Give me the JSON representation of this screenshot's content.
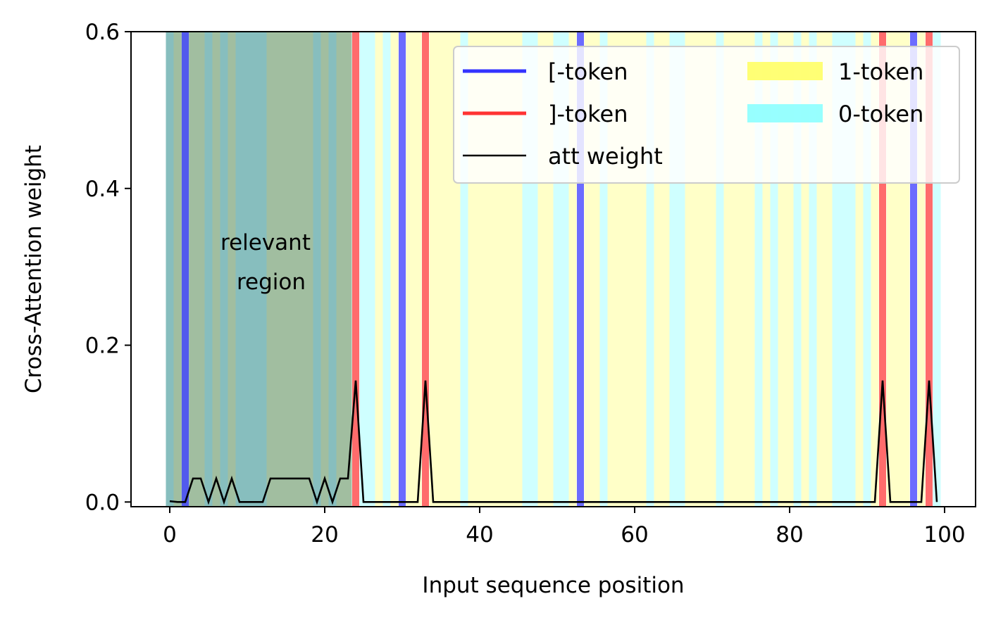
{
  "chart_data": {
    "type": "line",
    "xlabel": "Input sequence position",
    "ylabel": "Cross-Attention weight",
    "xlim": [
      -5,
      104
    ],
    "ylim": [
      -0.006,
      0.6
    ],
    "xticks": [
      0,
      20,
      40,
      60,
      80,
      100
    ],
    "xtick_labels": [
      "0",
      "20",
      "40",
      "60",
      "80",
      "100"
    ],
    "yticks": [
      0.0,
      0.2,
      0.4,
      0.6
    ],
    "ytick_labels": [
      "0.0",
      "0.2",
      "0.4",
      "0.6"
    ],
    "grid": false,
    "legend_placement": "upper-right",
    "colors": {
      "open_bracket": "#3333ff",
      "close_bracket": "#ff3333",
      "token_1": "#ffff66",
      "token_0": "#8cffff",
      "relevant_region": "#2f6f6f",
      "att_line": "#000000"
    },
    "legend": [
      {
        "label": "[-token",
        "kind": "line",
        "color": "#3333ff"
      },
      {
        "label": "]-token",
        "kind": "line",
        "color": "#ff3333"
      },
      {
        "label": "att weight",
        "kind": "thin-line",
        "color": "#000000"
      },
      {
        "label": "1-token",
        "kind": "patch",
        "color": "#ffff66"
      },
      {
        "label": "0-token",
        "kind": "patch",
        "color": "#8cffff"
      }
    ],
    "annotation": {
      "lines": [
        "relevant",
        "region"
      ],
      "x": 13,
      "y": 0.3
    },
    "relevant_region": [
      -0.5,
      23.5
    ],
    "open_bracket_positions": [
      2,
      30,
      53,
      96
    ],
    "close_bracket_positions": [
      24,
      33,
      92,
      98
    ],
    "token_types": [
      0,
      1,
      "[",
      1,
      1,
      0,
      1,
      0,
      1,
      0,
      0,
      0,
      0,
      1,
      1,
      1,
      1,
      1,
      1,
      0,
      1,
      0,
      1,
      1,
      "]",
      0,
      0,
      1,
      0,
      1,
      "[",
      1,
      1,
      "]",
      1,
      1,
      1,
      1,
      0,
      1,
      1,
      1,
      1,
      1,
      1,
      1,
      0,
      0,
      1,
      1,
      0,
      0,
      1,
      "[",
      1,
      1,
      0,
      1,
      1,
      1,
      1,
      1,
      0,
      1,
      1,
      0,
      0,
      1,
      1,
      1,
      1,
      0,
      1,
      1,
      1,
      1,
      0,
      1,
      0,
      1,
      1,
      0,
      1,
      0,
      1,
      1,
      0,
      0,
      0,
      1,
      0,
      1,
      "]",
      1,
      1,
      1,
      "[",
      1,
      "]",
      0
    ],
    "series": [
      {
        "name": "att weight",
        "x": [
          0,
          1,
          2,
          3,
          4,
          5,
          6,
          7,
          8,
          9,
          10,
          11,
          12,
          13,
          14,
          15,
          16,
          17,
          18,
          19,
          20,
          21,
          22,
          23,
          24,
          25,
          26,
          27,
          28,
          29,
          30,
          31,
          32,
          33,
          34,
          35,
          36,
          37,
          38,
          39,
          40,
          41,
          42,
          43,
          44,
          45,
          46,
          47,
          48,
          49,
          50,
          51,
          52,
          53,
          54,
          55,
          56,
          57,
          58,
          59,
          60,
          61,
          62,
          63,
          64,
          65,
          66,
          67,
          68,
          69,
          70,
          71,
          72,
          73,
          74,
          75,
          76,
          77,
          78,
          79,
          80,
          81,
          82,
          83,
          84,
          85,
          86,
          87,
          88,
          89,
          90,
          91,
          92,
          93,
          94,
          95,
          96,
          97,
          98,
          99
        ],
        "y": [
          0.001,
          0,
          0,
          0.03,
          0.03,
          0,
          0.03,
          0,
          0.03,
          0,
          0,
          0,
          0,
          0.03,
          0.03,
          0.03,
          0.03,
          0.03,
          0.03,
          0,
          0.03,
          0,
          0.03,
          0.03,
          0.155,
          0,
          0,
          0,
          0,
          0,
          0,
          0,
          0,
          0.155,
          0,
          0,
          0,
          0,
          0,
          0,
          0,
          0,
          0,
          0,
          0,
          0,
          0,
          0,
          0,
          0,
          0,
          0,
          0,
          0,
          0,
          0,
          0,
          0,
          0,
          0,
          0,
          0,
          0,
          0,
          0,
          0,
          0,
          0,
          0,
          0,
          0,
          0,
          0,
          0,
          0,
          0,
          0,
          0,
          0,
          0,
          0,
          0,
          0,
          0,
          0,
          0,
          0,
          0,
          0,
          0,
          0,
          0,
          0.155,
          0,
          0,
          0,
          0,
          0,
          0.155,
          0
        ]
      }
    ]
  }
}
